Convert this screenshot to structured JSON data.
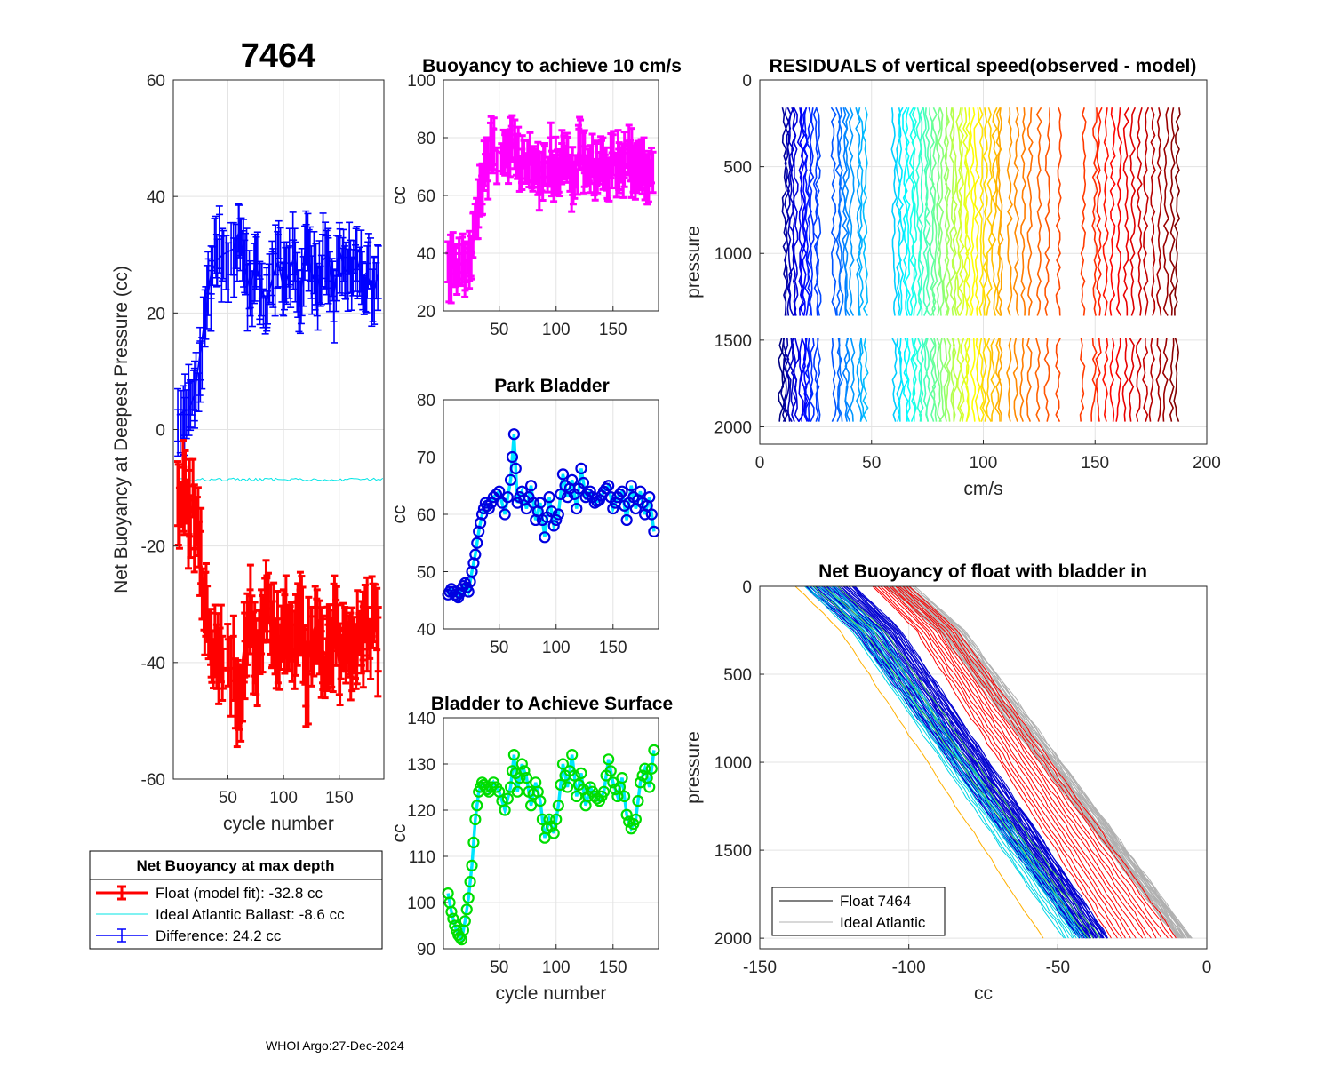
{
  "figure": {
    "float_id": "7464",
    "footer": "WHOI Argo:27-Dec-2024"
  },
  "legend_main": {
    "title": "Net Buoyancy at max depth",
    "entries": [
      {
        "label": "Float (model fit): -32.8 cc",
        "color": "#ff0000"
      },
      {
        "label": "Ideal Atlantic Ballast:  -8.6 cc",
        "color": "#00e5e5"
      },
      {
        "label": "Difference:  24.2 cc",
        "color": "#0000ff"
      }
    ]
  },
  "legend_profile": {
    "entries": [
      {
        "label": "Float 7464",
        "color": "#000000"
      },
      {
        "label": "Ideal Atlantic",
        "color": "#b0b0b0"
      }
    ]
  },
  "chart_data": [
    {
      "id": "net_buoyancy",
      "type": "line",
      "title": "7464",
      "xlabel": "cycle number",
      "ylabel": "Net Buoyancy at Deepest Pressure (cc)",
      "xlim": [
        1,
        190
      ],
      "ylim": [
        -60,
        60
      ],
      "xticks": [
        50,
        100,
        150
      ],
      "yticks": [
        -60,
        -40,
        -20,
        0,
        20,
        40,
        60
      ],
      "series": [
        {
          "name": "Difference",
          "color": "#0000ff",
          "errorbars": true,
          "x": [
            5,
            10,
            15,
            20,
            25,
            30,
            35,
            40,
            45,
            55,
            60,
            65,
            70,
            75,
            80,
            85,
            90,
            95,
            100,
            105,
            110,
            115,
            120,
            125,
            130,
            135,
            140,
            145,
            150,
            155,
            160,
            165,
            170,
            175,
            180,
            185
          ],
          "y": [
            2.5,
            3,
            3.5,
            6,
            13,
            20,
            27,
            29,
            30,
            31,
            34,
            28,
            24,
            29,
            24,
            22,
            26,
            29,
            24,
            27,
            30,
            21,
            33,
            27,
            24,
            29,
            30,
            23,
            31,
            27,
            28,
            30,
            26,
            27,
            23,
            27
          ]
        },
        {
          "name": "Ideal Atlantic Ballast",
          "color": "#00e5e5",
          "errorbars": false,
          "x": [
            5,
            190
          ],
          "y": [
            -8.6,
            -8.6
          ]
        },
        {
          "name": "Float (model fit)",
          "color": "#ff0000",
          "errorbars": true,
          "x": [
            5,
            10,
            15,
            20,
            25,
            30,
            35,
            40,
            45,
            55,
            60,
            65,
            70,
            75,
            80,
            85,
            90,
            95,
            100,
            105,
            110,
            115,
            120,
            125,
            130,
            135,
            140,
            145,
            150,
            155,
            160,
            165,
            170,
            175,
            180,
            185
          ],
          "y": [
            -11,
            -12,
            -12.5,
            -15,
            -23,
            -30,
            -37,
            -39,
            -41,
            -41,
            -46,
            -37,
            -33,
            -38,
            -33,
            -31,
            -35,
            -38,
            -33,
            -36,
            -39,
            -30,
            -42,
            -36,
            -33,
            -38,
            -39,
            -32,
            -40,
            -36,
            -37,
            -39,
            -35,
            -36,
            -32,
            -36
          ]
        }
      ]
    },
    {
      "id": "buoyancy_10cms",
      "type": "line",
      "title": "Buoyancy to achieve 10 cm/s",
      "xlabel": "",
      "ylabel": "cc",
      "xlim": [
        1,
        190
      ],
      "ylim": [
        20,
        100
      ],
      "xticks": [
        50,
        100,
        150
      ],
      "yticks": [
        20,
        40,
        60,
        80,
        100
      ],
      "series": [
        {
          "name": "buoyancy",
          "color": "#ff00ff",
          "errorbars": true,
          "x": [
            5,
            10,
            15,
            20,
            25,
            30,
            35,
            40,
            45,
            55,
            60,
            65,
            70,
            75,
            80,
            85,
            90,
            95,
            100,
            105,
            110,
            115,
            120,
            125,
            130,
            135,
            140,
            145,
            150,
            155,
            160,
            165,
            170,
            175,
            180,
            185
          ],
          "y": [
            37,
            36,
            36,
            37,
            39,
            52,
            64,
            72,
            76,
            74,
            80,
            74,
            69,
            72,
            70,
            68,
            71,
            73,
            67,
            71,
            73,
            64,
            76,
            70,
            68,
            71,
            72,
            66,
            74,
            69,
            70,
            72,
            68,
            69,
            64,
            68
          ]
        }
      ]
    },
    {
      "id": "park_bladder",
      "type": "line",
      "title": "Park Bladder",
      "xlabel": "",
      "ylabel": "cc",
      "xlim": [
        1,
        190
      ],
      "ylim": [
        40,
        80
      ],
      "xticks": [
        50,
        100,
        150
      ],
      "yticks": [
        40,
        50,
        60,
        70,
        80
      ],
      "series": [
        {
          "name": "park bladder",
          "color": "#00e5ff",
          "marker_color": "#0000e0",
          "x": [
            5,
            8,
            11,
            14,
            17,
            20,
            23,
            26,
            29,
            32,
            35,
            38,
            41,
            45,
            50,
            55,
            60,
            63,
            66,
            70,
            74,
            78,
            82,
            86,
            90,
            94,
            98,
            102,
            106,
            110,
            114,
            118,
            122,
            126,
            130,
            134,
            138,
            142,
            146,
            150,
            154,
            158,
            162,
            166,
            170,
            174,
            178,
            182,
            186
          ],
          "y": [
            46,
            47,
            46,
            45.5,
            47,
            48,
            46.5,
            50,
            53,
            57,
            60,
            62,
            61,
            63,
            64,
            60,
            66,
            74,
            62,
            64,
            61,
            65,
            59,
            62,
            56,
            63,
            58,
            60,
            67,
            63,
            66,
            61,
            68,
            63,
            64,
            62,
            62.5,
            64,
            65,
            61,
            63,
            64,
            59,
            65,
            61,
            64,
            60,
            63,
            57
          ]
        }
      ]
    },
    {
      "id": "bladder_surface",
      "type": "line",
      "title": "Bladder to Achieve Surface",
      "xlabel": "cycle number",
      "ylabel": "cc",
      "xlim": [
        1,
        190
      ],
      "ylim": [
        90,
        140
      ],
      "xticks": [
        50,
        100,
        150
      ],
      "yticks": [
        90,
        100,
        110,
        120,
        130,
        140
      ],
      "series": [
        {
          "name": "surface bladder",
          "color": "#00e5ff",
          "marker_color": "#00dd00",
          "x": [
            5,
            8,
            11,
            14,
            17,
            20,
            23,
            26,
            29,
            32,
            35,
            38,
            41,
            45,
            50,
            55,
            60,
            63,
            66,
            70,
            74,
            78,
            82,
            86,
            90,
            94,
            98,
            102,
            106,
            110,
            114,
            118,
            122,
            126,
            130,
            134,
            138,
            142,
            146,
            150,
            154,
            158,
            162,
            166,
            170,
            174,
            178,
            182,
            186
          ],
          "y": [
            102,
            98,
            95,
            93,
            92,
            96,
            101,
            108,
            118,
            124,
            126,
            125,
            124,
            126,
            124,
            120,
            125,
            132,
            124,
            130,
            127,
            121,
            126,
            122,
            114,
            118,
            115,
            121,
            130,
            125,
            132,
            123,
            128,
            121,
            125,
            123,
            122,
            124,
            131,
            126,
            123,
            127,
            119,
            116,
            118,
            126,
            129,
            125,
            133
          ]
        }
      ]
    },
    {
      "id": "residuals",
      "type": "line",
      "title": "RESIDUALS of vertical speed(observed - model)",
      "xlabel": "cm/s",
      "ylabel": "pressure",
      "xlim": [
        0,
        200
      ],
      "ylim": [
        2100,
        0
      ],
      "y_reversed": true,
      "xticks": [
        0,
        50,
        100,
        150,
        200
      ],
      "yticks": [
        0,
        500,
        1000,
        1500,
        2000
      ],
      "pressure_segments": [
        [
          160,
          1360
        ],
        [
          1490,
          2000
        ]
      ],
      "profile_offsets_cm_s": [
        9,
        10,
        11,
        12,
        13,
        14,
        15,
        16,
        18,
        19,
        20,
        21,
        22,
        23,
        25,
        26,
        33,
        35,
        36,
        38,
        39,
        41,
        44,
        45,
        47,
        60,
        62,
        63,
        65,
        66,
        68,
        69,
        71,
        72,
        74,
        75,
        77,
        78,
        80,
        81,
        83,
        84,
        86,
        87,
        89,
        90,
        92,
        93,
        95,
        97,
        99,
        101,
        103,
        105,
        107,
        108,
        112,
        115,
        118,
        121,
        125,
        129,
        134,
        145,
        150,
        152,
        155,
        158,
        161,
        164,
        167,
        170,
        173,
        176,
        179,
        182,
        185,
        187
      ]
    },
    {
      "id": "net_buoyancy_profile",
      "type": "line",
      "title": "Net Buoyancy of float with bladder in",
      "xlabel": "cc",
      "ylabel": "pressure",
      "xlim": [
        -150,
        0
      ],
      "ylim": [
        2060,
        0
      ],
      "y_reversed": true,
      "xticks": [
        -150,
        -100,
        -50,
        0
      ],
      "yticks": [
        0,
        500,
        1000,
        1500,
        2000
      ],
      "profile_groups": [
        {
          "name": "Ideal Atlantic",
          "color": "#b0b0b0",
          "surface_cc": [
            -108,
            -98
          ],
          "bottom_cc": [
            -10,
            -5
          ],
          "count": 24
        },
        {
          "name": "red cycles",
          "color": "#ff0000",
          "surface_cc": [
            -112,
            -100
          ],
          "bottom_cc": [
            -32,
            -10
          ],
          "count": 14
        },
        {
          "name": "blue cycles",
          "color": "#0000d0",
          "surface_cc": [
            -135,
            -118
          ],
          "bottom_cc": [
            -43,
            -33
          ],
          "count": 40
        },
        {
          "name": "cyan cycles",
          "color": "#00d5e5",
          "surface_cc": [
            -135,
            -125
          ],
          "bottom_cc": [
            -48,
            -40
          ],
          "count": 10
        },
        {
          "name": "green cycles",
          "color": "#55dd55",
          "surface_cc": [
            -132,
            -124
          ],
          "bottom_cc": [
            -40,
            -36
          ],
          "count": 3
        },
        {
          "name": "orange cycle",
          "color": "#ffb000",
          "surface_cc": [
            -138,
            -138
          ],
          "bottom_cc": [
            -55,
            -55
          ],
          "count": 1
        }
      ]
    }
  ]
}
